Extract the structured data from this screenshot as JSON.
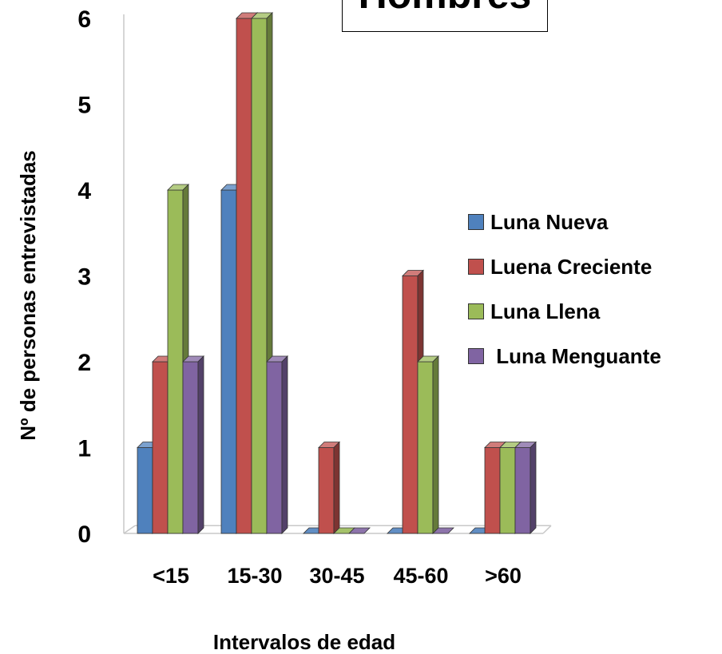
{
  "chart_data": {
    "type": "bar",
    "title": "Hombres",
    "xlabel": "Intervalos de edad",
    "ylabel": "Nº de personas entrevistadas",
    "categories": [
      "<15",
      "15-30",
      "30-45",
      "45-60",
      ">60"
    ],
    "ylim": [
      0,
      6
    ],
    "yticks": [
      0,
      1,
      2,
      3,
      4,
      5,
      6
    ],
    "legend_position": "right",
    "series": [
      {
        "name": "Luna Nueva",
        "values": [
          1,
          4,
          0,
          0,
          0
        ],
        "color": "#4f81bd"
      },
      {
        "name": "Luena Creciente",
        "values": [
          2,
          6,
          1,
          3,
          1
        ],
        "color": "#c0504d"
      },
      {
        "name": "Luna Llena",
        "values": [
          4,
          6,
          0,
          2,
          1
        ],
        "color": "#9bbb59"
      },
      {
        "name": " Luna Menguante",
        "values": [
          2,
          2,
          0,
          0,
          1
        ],
        "color": "#8064a2"
      }
    ]
  }
}
